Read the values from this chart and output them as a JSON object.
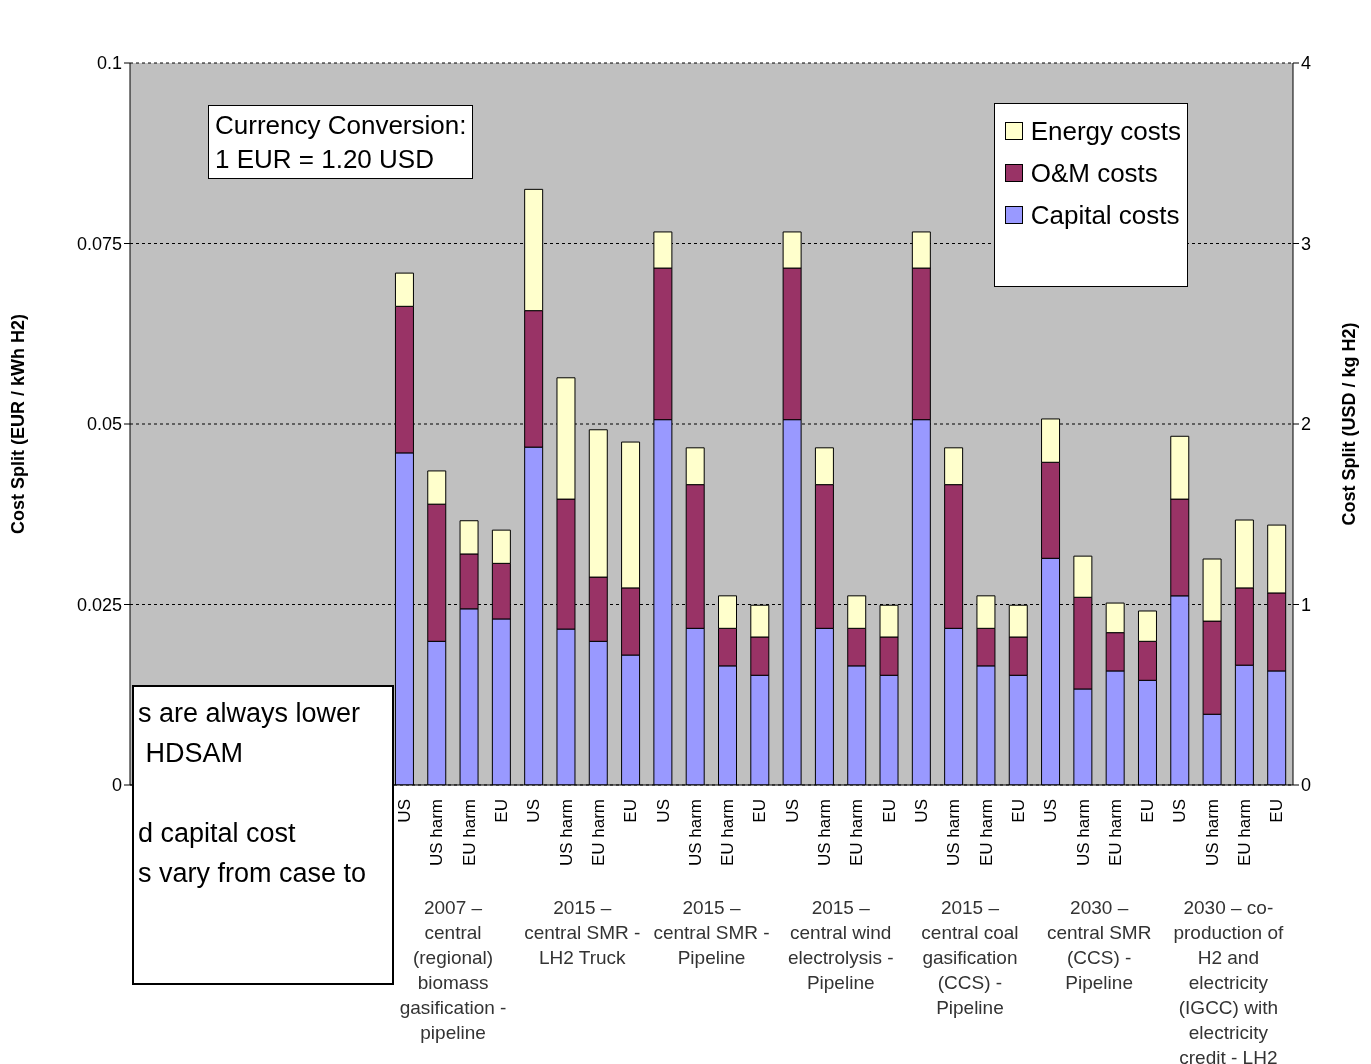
{
  "chart_data": {
    "type": "bar",
    "stacked": true,
    "categories": [
      null,
      null,
      null,
      null,
      null,
      null,
      null,
      null,
      "US",
      "US harm",
      "EU harm",
      "EU",
      "US",
      "US harm",
      "EU harm",
      "EU",
      "US",
      "US harm",
      "EU harm",
      "EU",
      "US",
      "US harm",
      "EU harm",
      "EU",
      "US",
      "US harm",
      "EU harm",
      "EU",
      "US",
      "US harm",
      "EU harm",
      "EU",
      "US",
      "US harm",
      "EU harm",
      "EU"
    ],
    "series": [
      {
        "name": "Capital costs",
        "color": "#9999ff",
        "values": [
          null,
          null,
          null,
          null,
          null,
          null,
          null,
          null,
          0.046,
          0.0199,
          0.0244,
          0.023,
          0.0468,
          0.0216,
          0.0199,
          0.018,
          0.0506,
          0.0217,
          0.0165,
          0.0152,
          0.0506,
          0.0217,
          0.0165,
          0.0152,
          0.0506,
          0.0217,
          0.0165,
          0.0152,
          0.0314,
          0.0133,
          0.0158,
          0.0145,
          0.0262,
          0.0098,
          0.0166,
          0.0158
        ]
      },
      {
        "name": "O&M costs",
        "color": "#993366",
        "values": [
          null,
          null,
          null,
          null,
          null,
          null,
          null,
          null,
          0.0203,
          0.019,
          0.0076,
          0.0077,
          0.0189,
          0.018,
          0.0089,
          0.0093,
          0.021,
          0.0199,
          0.0052,
          0.0053,
          0.021,
          0.0199,
          0.0052,
          0.0053,
          0.021,
          0.0199,
          0.0052,
          0.0053,
          0.0133,
          0.0127,
          0.0053,
          0.0054,
          0.0134,
          0.0129,
          0.0107,
          0.0108
        ]
      },
      {
        "name": "Energy costs",
        "color": "#ffffcc",
        "values": [
          null,
          null,
          null,
          null,
          null,
          null,
          null,
          null,
          0.0046,
          0.0046,
          0.0046,
          0.0046,
          0.0168,
          0.0168,
          0.0204,
          0.0202,
          0.005,
          0.0051,
          0.0045,
          0.0044,
          0.005,
          0.0051,
          0.0045,
          0.0044,
          0.005,
          0.0051,
          0.0045,
          0.0044,
          0.006,
          0.0057,
          0.0041,
          0.0042,
          0.0087,
          0.0086,
          0.0094,
          0.0094
        ]
      }
    ],
    "ylabel": "Cost Split (EUR / kWh H2)",
    "y2label": "Cost Split (USD / kg H2)",
    "ylim": [
      0,
      0.1
    ],
    "yticks": [
      0,
      0.025,
      0.05,
      0.075,
      0.1
    ],
    "y2lim": [
      0,
      4
    ],
    "y2ticks": [
      0,
      1,
      2,
      3,
      4
    ],
    "grid": "y",
    "legend": "top right",
    "annotations": [
      "Currency Conversion:\n1 EUR = 1.20 USD",
      "s are always lower\n HDSAM\n\nd capital cost\ns vary from case to",
      "2007 –\ncentral\n(regional)\nbiomass\ngasification -\npipeline",
      "2015 –\ncentral SMR -\nLH2 Truck",
      "2015 –\ncentral SMR -\nPipeline",
      "2015 –\ncentral wind\nelectrolysis -\nPipeline",
      "2015 –\ncentral coal\ngasification\n(CCS) -\nPipeline",
      "2030 –\ncentral SMR\n(CCS) -\nPipeline",
      "2030 – co-\nproduction of\nH2 and\nelectricity\n(IGCC) with\nelectricity\ncredit - LH2"
    ]
  }
}
